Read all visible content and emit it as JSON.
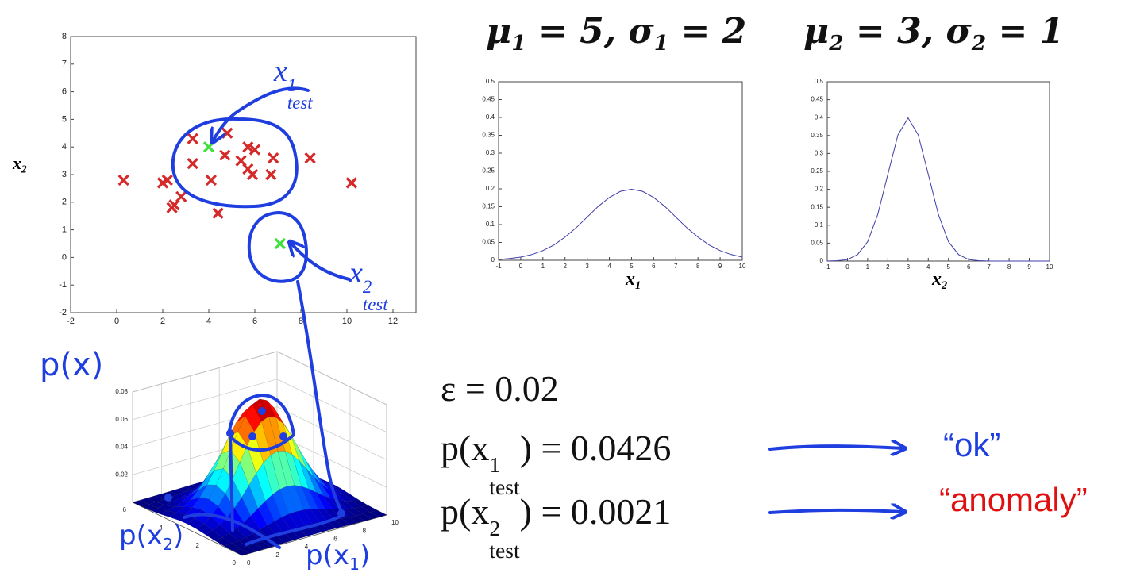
{
  "chart_data": [
    {
      "type": "scatter",
      "xlim": [
        -2,
        13
      ],
      "ylim": [
        -2,
        8
      ],
      "xticks": [
        -2,
        0,
        2,
        4,
        6,
        8,
        10,
        12
      ],
      "yticks": [
        -2,
        -1,
        0,
        1,
        2,
        3,
        4,
        5,
        6,
        7,
        8
      ],
      "y_label": [
        {
          "text": "x"
        },
        {
          "sub": "2"
        }
      ],
      "series": [
        {
          "color": "#d42a2a",
          "x": [
            0.3,
            2.0,
            2.2,
            2.8,
            2.5,
            2.4,
            3.3,
            3.3,
            4.1,
            4.8,
            4.7,
            4.4,
            5.4,
            5.7,
            5.7,
            5.9,
            6.0,
            6.7,
            6.8,
            8.4,
            10.2
          ],
          "y": [
            2.8,
            2.7,
            2.8,
            2.2,
            1.9,
            1.8,
            4.3,
            3.4,
            2.8,
            4.5,
            3.7,
            1.6,
            3.5,
            4.0,
            3.2,
            3.0,
            3.9,
            3.0,
            3.6,
            3.6,
            2.7
          ]
        },
        {
          "color": "#3de03d",
          "x": [
            4.0,
            7.1
          ],
          "y": [
            4.0,
            0.5
          ]
        }
      ],
      "annotations": [
        {
          "parts": [
            {
              "text": "x"
            },
            {
              "sup": "1",
              "sub": "test"
            }
          ],
          "color": "#1f3ee0"
        },
        {
          "parts": [
            {
              "text": "x"
            },
            {
              "sup": "2",
              "sub": "test"
            }
          ],
          "color": "#1f3ee0"
        }
      ]
    },
    {
      "type": "line",
      "title": [
        {
          "text": "μ"
        },
        {
          "sub": "1"
        },
        {
          "text": " = 5, σ"
        },
        {
          "sub": "1"
        },
        {
          "text": " = 2"
        }
      ],
      "x": [
        -1,
        -0.5,
        0,
        0.5,
        1,
        1.5,
        2,
        2.5,
        3,
        3.5,
        4,
        4.5,
        5,
        5.5,
        6,
        6.5,
        7,
        7.5,
        8,
        8.5,
        9,
        9.5,
        10
      ],
      "series": [
        {
          "color": "#3c3ca8",
          "values": [
            0.002,
            0.005,
            0.009,
            0.016,
            0.027,
            0.043,
            0.065,
            0.091,
            0.121,
            0.151,
            0.176,
            0.193,
            0.199,
            0.193,
            0.176,
            0.151,
            0.121,
            0.091,
            0.065,
            0.043,
            0.027,
            0.016,
            0.009
          ]
        }
      ],
      "xlim": [
        -1,
        10
      ],
      "ylim": [
        0,
        0.5
      ],
      "xticks": [
        -1,
        0,
        1,
        2,
        3,
        4,
        5,
        6,
        7,
        8,
        9,
        10
      ],
      "yticks": [
        0,
        0.05,
        0.1,
        0.15,
        0.2,
        0.25,
        0.3,
        0.35,
        0.4,
        0.45,
        0.5
      ],
      "x_label": [
        {
          "text": "x"
        },
        {
          "sub": "1"
        }
      ]
    },
    {
      "type": "line",
      "title": [
        {
          "text": "μ"
        },
        {
          "sub": "2"
        },
        {
          "text": " = 3, σ"
        },
        {
          "sub": "2"
        },
        {
          "text": " = 1"
        }
      ],
      "x": [
        -1,
        -0.5,
        0,
        0.5,
        1,
        1.5,
        2,
        2.5,
        3,
        3.5,
        4,
        4.5,
        5,
        5.5,
        6,
        6.5,
        7,
        7.5,
        8,
        8.5,
        9,
        9.5,
        10
      ],
      "series": [
        {
          "color": "#3c3ca8",
          "values": [
            0,
            0.001,
            0.004,
            0.018,
            0.054,
            0.13,
            0.242,
            0.352,
            0.399,
            0.352,
            0.242,
            0.13,
            0.054,
            0.018,
            0.004,
            0.001,
            0,
            0,
            0,
            0,
            0,
            0,
            0
          ]
        }
      ],
      "xlim": [
        -1,
        10
      ],
      "ylim": [
        0,
        0.5
      ],
      "xticks": [
        -1,
        0,
        1,
        2,
        3,
        4,
        5,
        6,
        7,
        8,
        9,
        10
      ],
      "yticks": [
        0,
        0.05,
        0.1,
        0.15,
        0.2,
        0.25,
        0.3,
        0.35,
        0.4,
        0.45,
        0.5
      ],
      "x_label": [
        {
          "text": "x"
        },
        {
          "sub": "2"
        }
      ]
    },
    {
      "type": "surface",
      "xlim": [
        0,
        10
      ],
      "ylim": [
        0,
        6
      ],
      "zlim": [
        0,
        0.08
      ],
      "xticks": [
        0,
        2,
        4,
        6,
        8,
        10
      ],
      "yticks": [
        0,
        2,
        4,
        6
      ],
      "zticks": [
        0.02,
        0.04,
        0.06,
        0.08
      ],
      "z_label": [
        {
          "text": "p(x)"
        }
      ],
      "x_label": [
        {
          "text": "p("
        },
        {
          "text": "x"
        },
        {
          "sub": "1"
        },
        {
          "text": ")"
        }
      ],
      "y_label": [
        {
          "text": "p("
        },
        {
          "text": "x"
        },
        {
          "sub": "2"
        },
        {
          "text": ")"
        }
      ],
      "color": "#1f3ee0"
    }
  ],
  "formulas": [
    {
      "parts": [
        {
          "text": "ε = 0.02"
        }
      ]
    },
    {
      "parts": [
        {
          "text": "p(x"
        },
        {
          "sup": "1",
          "sub": "test"
        },
        {
          "text": ") = 0.0426"
        }
      ]
    },
    {
      "parts": [
        {
          "text": "p(x"
        },
        {
          "sup": "2",
          "sub": "test"
        },
        {
          "text": ") = 0.0021"
        }
      ]
    }
  ],
  "results": [
    {
      "text": "“ok”",
      "color": "#1f3ee0"
    },
    {
      "text": "“anomaly”",
      "color": "#e01010"
    }
  ]
}
